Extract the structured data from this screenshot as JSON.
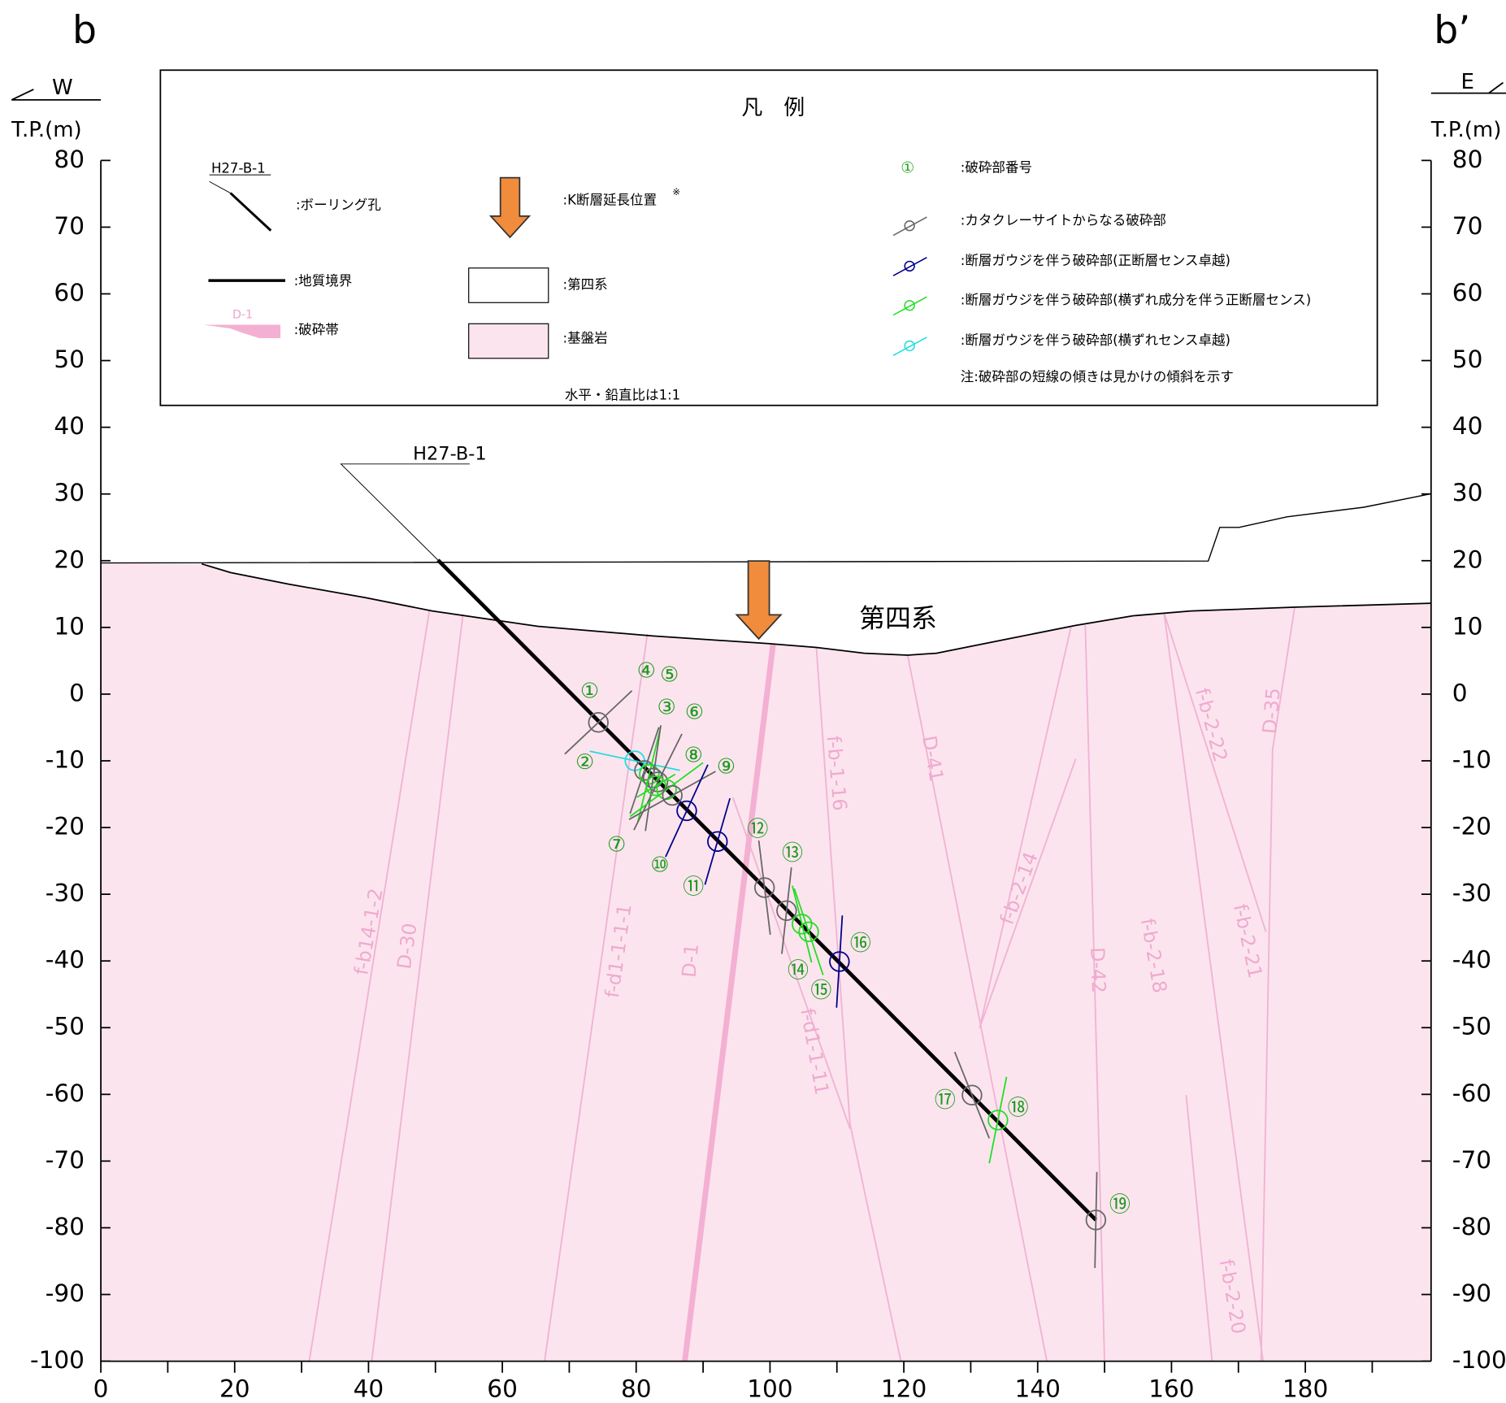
{
  "section": {
    "start_label": "b",
    "end_label": "b’",
    "start_direction": "W",
    "end_direction": "E",
    "y_unit_left": "T.P.(m)",
    "y_unit_right": "T.P.(m)"
  },
  "axes": {
    "xlim": [
      0,
      199
    ],
    "ylim": [
      -100,
      80
    ],
    "xticks": [
      0,
      20,
      40,
      60,
      80,
      100,
      120,
      140,
      160,
      180
    ],
    "yticks": [
      80,
      70,
      60,
      50,
      40,
      30,
      20,
      10,
      0,
      -10,
      -20,
      -30,
      -40,
      -50,
      -60,
      -70,
      -80,
      -90,
      -100
    ]
  },
  "legend": {
    "title": "凡　例",
    "boring_sample": "H27-B-1",
    "boring": ":ボーリング孔",
    "boundary": ":地質境界",
    "fracture_zone_sample": "D-1",
    "fracture_zone": ":破砕帯",
    "k_fault": ":K断層延長位置",
    "k_fault_mark": "※",
    "quaternary": ":第四系",
    "bedrock": ":基盤岩",
    "scale_note": "水平・鉛直比は1:1",
    "number_sample": "①",
    "number": ":破砕部番号",
    "cataclasite": ":カタクレーサイトからなる破砕部",
    "gouge_normal": ":断層ガウジを伴う破砕部(正断層センス卓越)",
    "gouge_oblique": ":断層ガウジを伴う破砕部(横ずれ成分を伴う正断層センス)",
    "gouge_strike": ":断層ガウジを伴う破砕部(横ずれセンス卓越)",
    "note": "注:破砕部の短線の傾きは見かけの傾斜を示す"
  },
  "boring_label": "H27-B-1",
  "quaternary_label": "第四系",
  "faults": [
    "f-b14-1-2",
    "D-30",
    "f-d1-1-1-1",
    "D-1",
    "f-b-1-16",
    "f-d1-1-11",
    "D-41",
    "f-b-2-14",
    "D-42",
    "f-b-2-18",
    "f-b-2-22",
    "f-b-2-21",
    "D-35",
    "f-b-2-20"
  ],
  "fractures": [
    "①",
    "②",
    "③",
    "④",
    "⑤",
    "⑥",
    "⑦",
    "⑧",
    "⑨",
    "⑩",
    "⑪",
    "⑫",
    "⑬",
    "⑭",
    "⑮",
    "⑯",
    "⑰",
    "⑱",
    "⑲"
  ]
}
